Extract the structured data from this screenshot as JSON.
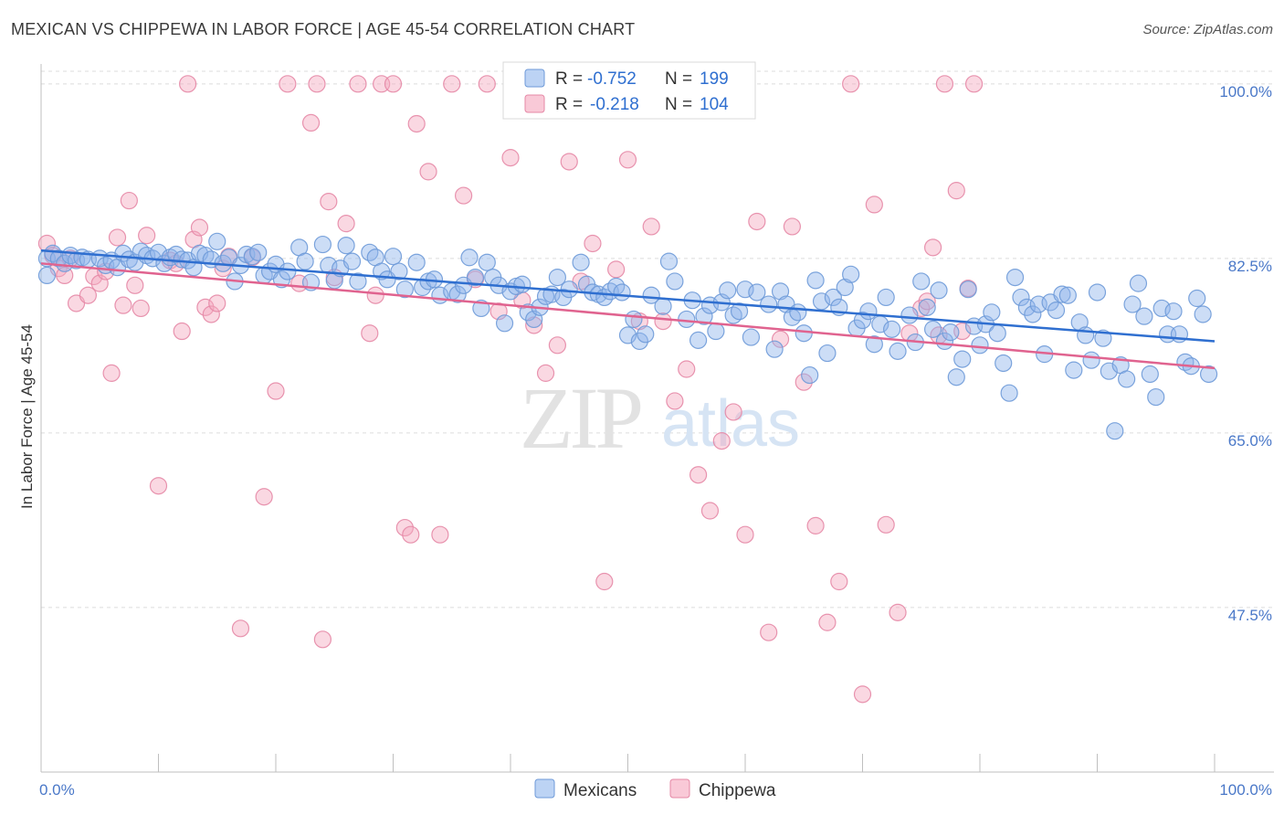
{
  "title": "MEXICAN VS CHIPPEWA IN LABOR FORCE | AGE 45-54 CORRELATION CHART",
  "source": "Source: ZipAtlas.com",
  "watermark": {
    "zip": "ZIP",
    "atlas": "atlas"
  },
  "chart_data": {
    "type": "scatter",
    "title": "MEXICAN VS CHIPPEWA IN LABOR FORCE | AGE 45-54 CORRELATION CHART",
    "ylabel": "In Labor Force | Age 45-54",
    "xlabel": "",
    "xlim": [
      0,
      100
    ],
    "ylim": [
      31,
      102
    ],
    "x_tick_labels": [
      "0.0%",
      "100.0%"
    ],
    "y_ticks": [
      47.5,
      65.0,
      82.5,
      100.0
    ],
    "y_tick_labels": [
      "47.5%",
      "65.0%",
      "82.5%",
      "100.0%"
    ],
    "grid": "horizontal dashed",
    "legend": {
      "placement": "top-center",
      "entries": [
        {
          "name": "Mexicans",
          "r_label": "R =",
          "r_value": "-0.752",
          "n_label": "N =",
          "n_value": "199",
          "color": "#8fb4ea"
        },
        {
          "name": "Chippewa",
          "r_label": "R =",
          "r_value": "-0.218",
          "n_label": "N =",
          "n_value": "104",
          "color": "#f4a8bf"
        }
      ]
    },
    "series": [
      {
        "name": "Mexicans",
        "color": "#8fb4ea",
        "stroke": "#6e9ad8",
        "trend": {
          "x": [
            0,
            100
          ],
          "y": [
            83.3,
            74.2
          ],
          "color": "#2f6fd0"
        },
        "points": [
          [
            0.5,
            82.5
          ],
          [
            0.5,
            80.8
          ],
          [
            1,
            83
          ],
          [
            1.5,
            82.5
          ],
          [
            2,
            82
          ],
          [
            2.5,
            82.8
          ],
          [
            3,
            82.3
          ],
          [
            3.5,
            82.6
          ],
          [
            4,
            82.4
          ],
          [
            5,
            82.5
          ],
          [
            5.5,
            81.8
          ],
          [
            6,
            82.3
          ],
          [
            6.5,
            81.6
          ],
          [
            7,
            83
          ],
          [
            7.5,
            82.4
          ],
          [
            8,
            82.1
          ],
          [
            8.5,
            83.2
          ],
          [
            9,
            82.8
          ],
          [
            9.5,
            82.5
          ],
          [
            10,
            83.1
          ],
          [
            10.5,
            82
          ],
          [
            11,
            82.6
          ],
          [
            11.5,
            82.9
          ],
          [
            12,
            82.4
          ],
          [
            12.5,
            82.3
          ],
          [
            13,
            81.6
          ],
          [
            13.5,
            83
          ],
          [
            14,
            82.8
          ],
          [
            14.5,
            82.4
          ],
          [
            15,
            84.2
          ],
          [
            15.5,
            82
          ],
          [
            16,
            82.6
          ],
          [
            16.5,
            80.2
          ],
          [
            17,
            81.8
          ],
          [
            17.5,
            82.9
          ],
          [
            18,
            82.7
          ],
          [
            18.5,
            83.1
          ],
          [
            19,
            80.8
          ],
          [
            19.5,
            81.2
          ],
          [
            20,
            81.9
          ],
          [
            20.5,
            80.4
          ],
          [
            21,
            81.2
          ],
          [
            22,
            83.6
          ],
          [
            22.5,
            82.2
          ],
          [
            23,
            80.1
          ],
          [
            24,
            83.9
          ],
          [
            24.5,
            81.8
          ],
          [
            25,
            80.3
          ],
          [
            25.5,
            81.5
          ],
          [
            26,
            83.8
          ],
          [
            26.5,
            82.2
          ],
          [
            27,
            80.2
          ],
          [
            28,
            83.1
          ],
          [
            28.5,
            82.6
          ],
          [
            29,
            81.2
          ],
          [
            29.5,
            80.4
          ],
          [
            30,
            82.7
          ],
          [
            30.5,
            81.2
          ],
          [
            31,
            79.4
          ],
          [
            32,
            82.1
          ],
          [
            32.5,
            79.6
          ],
          [
            33,
            80.2
          ],
          [
            33.5,
            80.4
          ],
          [
            34,
            78.8
          ],
          [
            35,
            79.2
          ],
          [
            35.5,
            78.9
          ],
          [
            36,
            79.8
          ],
          [
            36.5,
            82.6
          ],
          [
            37,
            80.6
          ],
          [
            37.5,
            77.5
          ],
          [
            38,
            82.1
          ],
          [
            38.5,
            80.6
          ],
          [
            39,
            79.8
          ],
          [
            39.5,
            76
          ],
          [
            40,
            79.2
          ],
          [
            40.5,
            79.7
          ],
          [
            41,
            79.9
          ],
          [
            41.5,
            77.1
          ],
          [
            42,
            76.4
          ],
          [
            42.5,
            77.6
          ],
          [
            43,
            78.7
          ],
          [
            43.5,
            78.9
          ],
          [
            44,
            80.6
          ],
          [
            44.5,
            78.6
          ],
          [
            45,
            79.4
          ],
          [
            46,
            82.1
          ],
          [
            46.5,
            79.9
          ],
          [
            47,
            79.1
          ],
          [
            47.5,
            78.9
          ],
          [
            48,
            78.6
          ],
          [
            48.5,
            79.2
          ],
          [
            49,
            79.7
          ],
          [
            49.5,
            79.1
          ],
          [
            50,
            74.8
          ],
          [
            50.5,
            76.4
          ],
          [
            51,
            74.2
          ],
          [
            51.5,
            74.9
          ],
          [
            52,
            78.8
          ],
          [
            53,
            77.7
          ],
          [
            53.5,
            82.2
          ],
          [
            54,
            80.2
          ],
          [
            55,
            76.4
          ],
          [
            55.5,
            78.3
          ],
          [
            56,
            74.3
          ],
          [
            56.5,
            76.7
          ],
          [
            57,
            77.8
          ],
          [
            57.5,
            75.2
          ],
          [
            58,
            78.1
          ],
          [
            58.5,
            79.3
          ],
          [
            59,
            76.8
          ],
          [
            59.5,
            77.2
          ],
          [
            60,
            79.4
          ],
          [
            60.5,
            74.6
          ],
          [
            61,
            79.1
          ],
          [
            62,
            77.9
          ],
          [
            62.5,
            73.4
          ],
          [
            63,
            79.2
          ],
          [
            63.5,
            77.9
          ],
          [
            64,
            76.6
          ],
          [
            64.5,
            77.1
          ],
          [
            65,
            75
          ],
          [
            65.5,
            70.8
          ],
          [
            66,
            80.3
          ],
          [
            66.5,
            78.2
          ],
          [
            67,
            73
          ],
          [
            67.5,
            78.6
          ],
          [
            68,
            77.6
          ],
          [
            68.5,
            79.6
          ],
          [
            69,
            80.9
          ],
          [
            69.5,
            75.5
          ],
          [
            70,
            76.3
          ],
          [
            70.5,
            77.2
          ],
          [
            71,
            73.9
          ],
          [
            71.5,
            75.9
          ],
          [
            72,
            78.6
          ],
          [
            72.5,
            75.4
          ],
          [
            73,
            73.2
          ],
          [
            74,
            76.8
          ],
          [
            74.5,
            74.1
          ],
          [
            75,
            80.2
          ],
          [
            75.5,
            77.6
          ],
          [
            76,
            75.4
          ],
          [
            76.5,
            79.3
          ],
          [
            77,
            74.2
          ],
          [
            77.5,
            75.1
          ],
          [
            78,
            70.6
          ],
          [
            78.5,
            72.4
          ],
          [
            79,
            79.4
          ],
          [
            79.5,
            75.7
          ],
          [
            80,
            73.8
          ],
          [
            80.5,
            75.9
          ],
          [
            81,
            77.1
          ],
          [
            81.5,
            75
          ],
          [
            82,
            72
          ],
          [
            82.5,
            69
          ],
          [
            83,
            80.6
          ],
          [
            83.5,
            78.6
          ],
          [
            84,
            77.6
          ],
          [
            84.5,
            76.9
          ],
          [
            85,
            77.9
          ],
          [
            85.5,
            72.9
          ],
          [
            86,
            78.1
          ],
          [
            86.5,
            77.3
          ],
          [
            87,
            78.9
          ],
          [
            87.5,
            78.8
          ],
          [
            88,
            71.3
          ],
          [
            88.5,
            76.1
          ],
          [
            89,
            74.8
          ],
          [
            89.5,
            72.3
          ],
          [
            90,
            79.1
          ],
          [
            90.5,
            74.5
          ],
          [
            91,
            71.2
          ],
          [
            91.5,
            65.2
          ],
          [
            92,
            71.8
          ],
          [
            92.5,
            70.4
          ],
          [
            93,
            77.9
          ],
          [
            93.5,
            80
          ],
          [
            94,
            76.7
          ],
          [
            94.5,
            70.9
          ],
          [
            95,
            68.6
          ],
          [
            95.5,
            77.5
          ],
          [
            96,
            74.9
          ],
          [
            96.5,
            77.2
          ],
          [
            97,
            74.9
          ],
          [
            97.5,
            72.1
          ],
          [
            98,
            71.7
          ],
          [
            98.5,
            78.5
          ],
          [
            99,
            76.9
          ],
          [
            99.5,
            70.9
          ]
        ]
      },
      {
        "name": "Chippewa",
        "color": "#f4a8bf",
        "stroke": "#e588a6",
        "trend": {
          "x": [
            0,
            100
          ],
          "y": [
            82.0,
            71.5
          ],
          "color": "#e0638f"
        },
        "points": [
          [
            0.5,
            84
          ],
          [
            1,
            82.8
          ],
          [
            1.5,
            81.5
          ],
          [
            2,
            80.8
          ],
          [
            2.5,
            82.5
          ],
          [
            3,
            78
          ],
          [
            4,
            78.8
          ],
          [
            4.5,
            80.7
          ],
          [
            5,
            80
          ],
          [
            5.5,
            81.2
          ],
          [
            6,
            71
          ],
          [
            6.5,
            84.6
          ],
          [
            7,
            77.8
          ],
          [
            7.5,
            88.3
          ],
          [
            8,
            79.8
          ],
          [
            8.5,
            77.5
          ],
          [
            9,
            84.8
          ],
          [
            10,
            59.7
          ],
          [
            11,
            82.3
          ],
          [
            11.5,
            82
          ],
          [
            12,
            75.2
          ],
          [
            12.5,
            100
          ],
          [
            13,
            84.4
          ],
          [
            13.5,
            85.6
          ],
          [
            14,
            77.6
          ],
          [
            14.5,
            76.9
          ],
          [
            15,
            78
          ],
          [
            15.5,
            81.5
          ],
          [
            16,
            82.7
          ],
          [
            17,
            45.4
          ],
          [
            18,
            82.6
          ],
          [
            19,
            58.6
          ],
          [
            20,
            69.2
          ],
          [
            21,
            100
          ],
          [
            22,
            80
          ],
          [
            23,
            96.1
          ],
          [
            23.5,
            100
          ],
          [
            24,
            44.3
          ],
          [
            24.5,
            88.2
          ],
          [
            25,
            80.6
          ],
          [
            26,
            86
          ],
          [
            27,
            100
          ],
          [
            28,
            75
          ],
          [
            28.5,
            78.8
          ],
          [
            29,
            100
          ],
          [
            30,
            100
          ],
          [
            31,
            55.5
          ],
          [
            31.5,
            54.8
          ],
          [
            32,
            96
          ],
          [
            33,
            91.2
          ],
          [
            34,
            54.8
          ],
          [
            35,
            100
          ],
          [
            36,
            88.8
          ],
          [
            37,
            80.4
          ],
          [
            38,
            100
          ],
          [
            39,
            77.2
          ],
          [
            40,
            92.6
          ],
          [
            41,
            78.3
          ],
          [
            42,
            75.8
          ],
          [
            43,
            71
          ],
          [
            44,
            73.8
          ],
          [
            45,
            92.2
          ],
          [
            46,
            80.2
          ],
          [
            47,
            84
          ],
          [
            48,
            50.1
          ],
          [
            49,
            81.4
          ],
          [
            50,
            92.4
          ],
          [
            51,
            76.2
          ],
          [
            52,
            85.7
          ],
          [
            53,
            76.2
          ],
          [
            54,
            68.2
          ],
          [
            55,
            71.4
          ],
          [
            56,
            60.8
          ],
          [
            57,
            57.2
          ],
          [
            58,
            64.2
          ],
          [
            59,
            67.1
          ],
          [
            60,
            54.8
          ],
          [
            61,
            86.2
          ],
          [
            62,
            45
          ],
          [
            63,
            74.4
          ],
          [
            64,
            85.7
          ],
          [
            65,
            70.1
          ],
          [
            66,
            55.7
          ],
          [
            67,
            46
          ],
          [
            68,
            50.1
          ],
          [
            69,
            100
          ],
          [
            70,
            38.8
          ],
          [
            71,
            87.9
          ],
          [
            72,
            55.8
          ],
          [
            73,
            47
          ],
          [
            74,
            75
          ],
          [
            75,
            77.5
          ],
          [
            75.5,
            78.2
          ],
          [
            76,
            83.6
          ],
          [
            76.5,
            74.8
          ],
          [
            77,
            100
          ],
          [
            78,
            89.3
          ],
          [
            78.5,
            75.2
          ],
          [
            79,
            79.5
          ],
          [
            79.5,
            100
          ]
        ]
      }
    ]
  },
  "bottom_legend": [
    {
      "label": "Mexicans",
      "color": "#8fb4ea"
    },
    {
      "label": "Chippewa",
      "color": "#f4a8bf"
    }
  ]
}
